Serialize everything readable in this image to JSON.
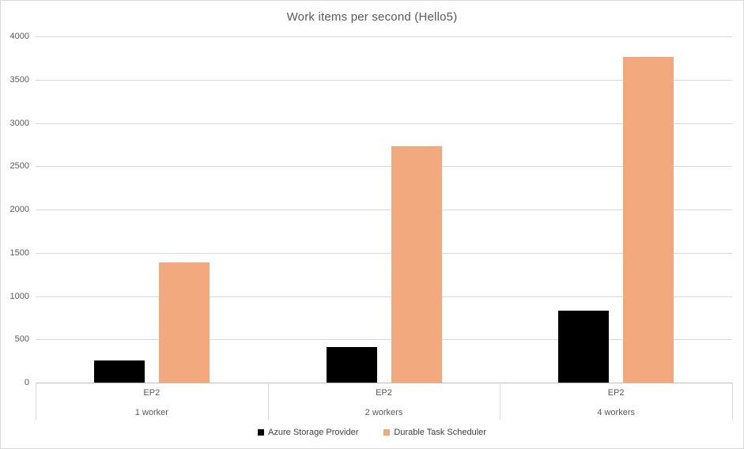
{
  "figure": {
    "background": "#FFFFFF",
    "border_color": "#D9D9D9"
  },
  "chart_data": {
    "type": "bar",
    "title": "Work items per second (Hello5)",
    "categories": [
      {
        "label": "EP2",
        "sublabel": "1 worker"
      },
      {
        "label": "EP2",
        "sublabel": "2 workers"
      },
      {
        "label": "EP2",
        "sublabel": "4 workers"
      }
    ],
    "series": [
      {
        "name": "Azure Storage Provider",
        "color": "#000000",
        "values": [
          260,
          415,
          835
        ]
      },
      {
        "name": "Durable Task Scheduler",
        "color": "#F2A97E",
        "values": [
          1390,
          2730,
          3760
        ]
      }
    ],
    "xlabel": "",
    "ylabel": "",
    "ylim": [
      0,
      4000
    ],
    "ytick_interval": 500,
    "yticks": [
      0,
      500,
      1000,
      1500,
      2000,
      2500,
      3000,
      3500,
      4000
    ],
    "grid": true,
    "legend_position": "bottom",
    "colors": {
      "gridline": "#D9D9D9",
      "axis_line": "#BFBFBF",
      "tick_label": "#595959",
      "title": "#595959",
      "legend_text": "#404040"
    }
  }
}
